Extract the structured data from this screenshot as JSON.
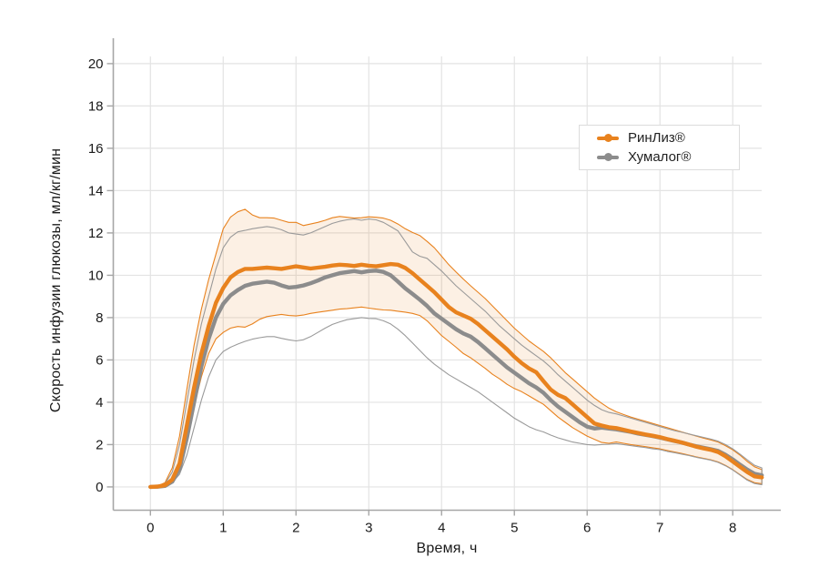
{
  "figure": {
    "x_axis_title": "Время, ч",
    "y_axis_title": "Скорость инфузии глюкозы, мл/кг/мин"
  },
  "legend": {
    "items": [
      {
        "label": "РинЛиз®",
        "color": "#E8821E"
      },
      {
        "label": "Хумалог®",
        "color": "#8C8C8C"
      }
    ]
  },
  "colors": {
    "rinliz_orange": "#E8821E",
    "humalog_gray": "#8C8C8C",
    "band_fill_opacity": 0.12,
    "gridline": "#E3E3E3",
    "axis_line": "#A6A6A6",
    "text": "#1A1A1A",
    "background": "#FFFFFF"
  },
  "chart_data": {
    "type": "line",
    "title": "",
    "xlabel": "Время, ч",
    "ylabel": "Скорость инфузии глюкозы, мл/кг/мин",
    "xlim": [
      -0.51,
      8.66
    ],
    "ylim": [
      -1.1,
      21.2
    ],
    "x_ticks": [
      0,
      1,
      2,
      3,
      4,
      5,
      6,
      7,
      8
    ],
    "y_ticks": [
      0,
      2,
      4,
      6,
      8,
      10,
      12,
      14,
      16,
      18,
      20
    ],
    "grid": true,
    "legend_position": "upper right",
    "x": [
      0,
      0.1,
      0.2,
      0.3,
      0.4,
      0.5,
      0.6,
      0.7,
      0.8,
      0.9,
      1,
      1.1,
      1.2,
      1.3,
      1.4,
      1.5,
      1.6,
      1.7,
      1.8,
      1.9,
      2,
      2.1,
      2.2,
      2.3,
      2.4,
      2.5,
      2.6,
      2.7,
      2.8,
      2.9,
      3,
      3.1,
      3.2,
      3.3,
      3.4,
      3.5,
      3.6,
      3.7,
      3.8,
      3.9,
      4,
      4.1,
      4.2,
      4.3,
      4.4,
      4.5,
      4.6,
      4.7,
      4.8,
      4.9,
      5,
      5.1,
      5.2,
      5.3,
      5.4,
      5.5,
      5.6,
      5.7,
      5.8,
      5.9,
      6,
      6.1,
      6.2,
      6.3,
      6.4,
      6.5,
      6.6,
      6.7,
      6.8,
      6.9,
      7,
      7.1,
      7.2,
      7.3,
      7.4,
      7.5,
      7.6,
      7.7,
      7.8,
      7.9,
      8,
      8.1,
      8.2,
      8.3,
      8.4
    ],
    "series": [
      {
        "name": "РинЛиз®",
        "color": "#E8821E",
        "band_filled": true,
        "values": [
          0,
          0.02,
          0.08,
          0.35,
          1.1,
          2.9,
          4.7,
          6.3,
          7.6,
          8.7,
          9.4,
          9.9,
          10.15,
          10.3,
          10.3,
          10.33,
          10.36,
          10.33,
          10.3,
          10.36,
          10.42,
          10.37,
          10.32,
          10.36,
          10.4,
          10.46,
          10.5,
          10.48,
          10.44,
          10.5,
          10.45,
          10.42,
          10.48,
          10.53,
          10.5,
          10.35,
          10.1,
          9.8,
          9.5,
          9.2,
          8.85,
          8.5,
          8.25,
          8.1,
          7.95,
          7.7,
          7.4,
          7.1,
          6.8,
          6.5,
          6.15,
          5.85,
          5.6,
          5.42,
          5.0,
          4.6,
          4.35,
          4.2,
          3.9,
          3.6,
          3.3,
          3.0,
          2.9,
          2.82,
          2.78,
          2.7,
          2.62,
          2.55,
          2.48,
          2.42,
          2.35,
          2.26,
          2.18,
          2.1,
          2.0,
          1.9,
          1.82,
          1.75,
          1.65,
          1.45,
          1.2,
          0.95,
          0.7,
          0.5,
          0.45
        ],
        "band_upper": [
          0,
          0.05,
          0.2,
          0.9,
          2.4,
          4.6,
          6.7,
          8.4,
          9.8,
          11.0,
          12.2,
          12.75,
          13.0,
          13.12,
          12.85,
          12.72,
          12.72,
          12.7,
          12.6,
          12.5,
          12.5,
          12.35,
          12.42,
          12.5,
          12.6,
          12.72,
          12.78,
          12.74,
          12.7,
          12.72,
          12.76,
          12.74,
          12.7,
          12.6,
          12.42,
          12.2,
          12.02,
          11.88,
          11.6,
          11.3,
          10.9,
          10.5,
          10.15,
          9.82,
          9.5,
          9.2,
          8.9,
          8.55,
          8.2,
          7.85,
          7.5,
          7.2,
          6.9,
          6.65,
          6.4,
          6.1,
          5.75,
          5.4,
          5.1,
          4.8,
          4.5,
          4.2,
          3.95,
          3.72,
          3.55,
          3.42,
          3.3,
          3.2,
          3.1,
          3.0,
          2.9,
          2.8,
          2.7,
          2.6,
          2.5,
          2.4,
          2.3,
          2.22,
          2.12,
          1.95,
          1.75,
          1.5,
          1.2,
          0.95,
          0.82
        ],
        "band_lower": [
          0,
          0,
          0.05,
          0.3,
          0.9,
          2.2,
          3.8,
          5.2,
          6.3,
          7.0,
          7.3,
          7.5,
          7.58,
          7.55,
          7.7,
          7.92,
          8.05,
          8.1,
          8.15,
          8.1,
          8.08,
          8.12,
          8.2,
          8.25,
          8.3,
          8.35,
          8.4,
          8.42,
          8.46,
          8.5,
          8.45,
          8.4,
          8.36,
          8.35,
          8.3,
          8.26,
          8.2,
          8.1,
          7.85,
          7.5,
          7.15,
          6.88,
          6.6,
          6.3,
          6.1,
          5.85,
          5.6,
          5.32,
          5.1,
          4.85,
          4.65,
          4.5,
          4.3,
          4.1,
          3.9,
          3.6,
          3.3,
          3.05,
          2.8,
          2.6,
          2.4,
          2.25,
          2.1,
          2.06,
          2.12,
          2.06,
          2.0,
          1.95,
          1.9,
          1.85,
          1.8,
          1.72,
          1.65,
          1.58,
          1.5,
          1.42,
          1.35,
          1.28,
          1.18,
          1.02,
          0.82,
          0.58,
          0.35,
          0.2,
          0.15
        ]
      },
      {
        "name": "Хумалог®",
        "color": "#8C8C8C",
        "band_filled": false,
        "values": [
          0,
          0.01,
          0.05,
          0.25,
          0.85,
          2.3,
          4.0,
          5.7,
          7.0,
          8.0,
          8.65,
          9.05,
          9.3,
          9.5,
          9.6,
          9.65,
          9.7,
          9.65,
          9.52,
          9.42,
          9.45,
          9.52,
          9.62,
          9.75,
          9.9,
          10.0,
          10.1,
          10.15,
          10.2,
          10.14,
          10.2,
          10.22,
          10.16,
          10.0,
          9.7,
          9.38,
          9.12,
          8.85,
          8.55,
          8.2,
          7.95,
          7.7,
          7.45,
          7.25,
          7.1,
          6.85,
          6.55,
          6.25,
          5.95,
          5.65,
          5.4,
          5.15,
          4.9,
          4.7,
          4.45,
          4.1,
          3.8,
          3.55,
          3.3,
          3.05,
          2.85,
          2.76,
          2.8,
          2.76,
          2.72,
          2.66,
          2.6,
          2.52,
          2.46,
          2.4,
          2.33,
          2.25,
          2.17,
          2.1,
          2.0,
          1.92,
          1.85,
          1.78,
          1.7,
          1.52,
          1.3,
          1.05,
          0.82,
          0.62,
          0.55
        ],
        "band_upper": [
          0,
          0.04,
          0.15,
          0.7,
          2.0,
          4.0,
          6.0,
          7.7,
          9.0,
          10.3,
          11.3,
          11.8,
          12.05,
          12.12,
          12.2,
          12.25,
          12.3,
          12.25,
          12.15,
          12.0,
          11.95,
          11.9,
          12.0,
          12.15,
          12.3,
          12.45,
          12.55,
          12.62,
          12.66,
          12.6,
          12.66,
          12.62,
          12.5,
          12.3,
          12.1,
          11.6,
          11.1,
          10.9,
          10.8,
          10.5,
          10.2,
          9.85,
          9.5,
          9.2,
          8.9,
          8.6,
          8.3,
          7.95,
          7.6,
          7.3,
          7.0,
          6.7,
          6.45,
          6.2,
          5.95,
          5.65,
          5.3,
          5.0,
          4.7,
          4.4,
          4.1,
          3.85,
          3.65,
          3.52,
          3.45,
          3.35,
          3.25,
          3.15,
          3.05,
          2.95,
          2.85,
          2.75,
          2.66,
          2.58,
          2.5,
          2.42,
          2.34,
          2.26,
          2.16,
          2.0,
          1.8,
          1.55,
          1.28,
          1.02,
          0.9
        ],
        "band_lower": [
          0,
          0,
          0.03,
          0.2,
          0.6,
          1.5,
          2.8,
          4.1,
          5.2,
          6.0,
          6.4,
          6.6,
          6.75,
          6.88,
          6.98,
          7.05,
          7.1,
          7.1,
          7.02,
          6.95,
          6.9,
          6.95,
          7.1,
          7.3,
          7.5,
          7.68,
          7.8,
          7.9,
          7.95,
          8.0,
          7.96,
          7.95,
          7.85,
          7.7,
          7.45,
          7.15,
          6.8,
          6.45,
          6.1,
          5.8,
          5.55,
          5.3,
          5.1,
          4.9,
          4.7,
          4.5,
          4.25,
          4.0,
          3.75,
          3.5,
          3.25,
          3.05,
          2.85,
          2.7,
          2.6,
          2.45,
          2.32,
          2.22,
          2.12,
          2.06,
          2.0,
          1.98,
          2.0,
          2.02,
          2.05,
          2.0,
          1.95,
          1.9,
          1.86,
          1.8,
          1.76,
          1.68,
          1.62,
          1.55,
          1.48,
          1.4,
          1.33,
          1.26,
          1.16,
          1.0,
          0.8,
          0.56,
          0.32,
          0.16,
          0.1
        ]
      }
    ]
  }
}
